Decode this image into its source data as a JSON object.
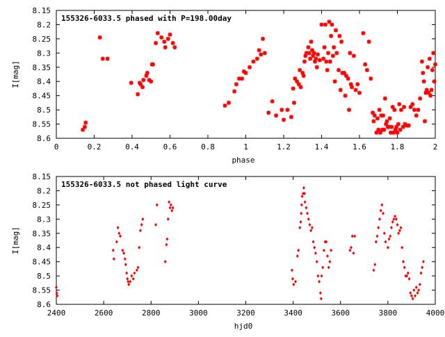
{
  "colors": {
    "points": "#ff0000",
    "axes": "#000000",
    "background": "#ffffff"
  },
  "chart_data": [
    {
      "type": "scatter",
      "title": "155326-6033.5 phased with P=198.00day",
      "xlabel": "phase",
      "ylabel": "I[mag]",
      "xlim": [
        0,
        2
      ],
      "ylim": [
        8.15,
        8.6
      ],
      "y_inverted": true,
      "marker": "star",
      "grid": false,
      "x_ticks": [
        "0",
        "0.2",
        "0.4",
        "0.6",
        "0.8",
        "1",
        "1.2",
        "1.4",
        "1.6",
        "1.8",
        "2"
      ],
      "y_ticks": [
        "8.15",
        "8.2",
        "8.25",
        "8.3",
        "8.35",
        "8.4",
        "8.45",
        "8.5",
        "8.55",
        "8.6"
      ],
      "points": [
        [
          0.14,
          8.57
        ],
        [
          0.15,
          8.56
        ],
        [
          0.155,
          8.545
        ],
        [
          0.23,
          8.245
        ],
        [
          0.245,
          8.32
        ],
        [
          0.27,
          8.32
        ],
        [
          0.395,
          8.405
        ],
        [
          0.43,
          8.445
        ],
        [
          0.44,
          8.405
        ],
        [
          0.445,
          8.41
        ],
        [
          0.455,
          8.42
        ],
        [
          0.46,
          8.395
        ],
        [
          0.475,
          8.38
        ],
        [
          0.48,
          8.37
        ],
        [
          0.49,
          8.395
        ],
        [
          0.5,
          8.4
        ],
        [
          0.505,
          8.34
        ],
        [
          0.51,
          8.34
        ],
        [
          0.525,
          8.265
        ],
        [
          0.535,
          8.23
        ],
        [
          0.555,
          8.245
        ],
        [
          0.57,
          8.26
        ],
        [
          0.575,
          8.28
        ],
        [
          0.59,
          8.25
        ],
        [
          0.6,
          8.235
        ],
        [
          0.615,
          8.265
        ],
        [
          0.625,
          8.28
        ],
        [
          0.89,
          8.485
        ],
        [
          0.91,
          8.475
        ],
        [
          0.94,
          8.435
        ],
        [
          0.95,
          8.41
        ],
        [
          0.965,
          8.39
        ],
        [
          0.98,
          8.39
        ],
        [
          0.99,
          8.365
        ],
        [
          1.0,
          8.37
        ],
        [
          1.02,
          8.35
        ],
        [
          1.04,
          8.33
        ],
        [
          1.06,
          8.32
        ],
        [
          1.07,
          8.29
        ],
        [
          1.08,
          8.305
        ],
        [
          1.09,
          8.25
        ],
        [
          1.1,
          8.3
        ],
        [
          1.12,
          8.51
        ],
        [
          1.14,
          8.47
        ],
        [
          1.16,
          8.52
        ],
        [
          1.19,
          8.5
        ],
        [
          1.2,
          8.535
        ],
        [
          1.22,
          8.5
        ],
        [
          1.24,
          8.525
        ],
        [
          1.25,
          8.425
        ],
        [
          1.255,
          8.475
        ],
        [
          1.26,
          8.39
        ],
        [
          1.27,
          8.4
        ],
        [
          1.28,
          8.41
        ],
        [
          1.285,
          8.36
        ],
        [
          1.29,
          8.42
        ],
        [
          1.3,
          8.37
        ],
        [
          1.305,
          8.38
        ],
        [
          1.31,
          8.33
        ],
        [
          1.315,
          8.31
        ],
        [
          1.32,
          8.3
        ],
        [
          1.33,
          8.28
        ],
        [
          1.335,
          8.3
        ],
        [
          1.34,
          8.32
        ],
        [
          1.345,
          8.26
        ],
        [
          1.35,
          8.29
        ],
        [
          1.355,
          8.31
        ],
        [
          1.36,
          8.3
        ],
        [
          1.365,
          8.33
        ],
        [
          1.37,
          8.32
        ],
        [
          1.375,
          8.35
        ],
        [
          1.38,
          8.305
        ],
        [
          1.39,
          8.325
        ],
        [
          1.4,
          8.2
        ],
        [
          1.41,
          8.32
        ],
        [
          1.415,
          8.28
        ],
        [
          1.42,
          8.2
        ],
        [
          1.425,
          8.33
        ],
        [
          1.43,
          8.36
        ],
        [
          1.435,
          8.3
        ],
        [
          1.44,
          8.19
        ],
        [
          1.445,
          8.33
        ],
        [
          1.45,
          8.24
        ],
        [
          1.455,
          8.2
        ],
        [
          1.46,
          8.31
        ],
        [
          1.465,
          8.28
        ],
        [
          1.47,
          8.4
        ],
        [
          1.475,
          8.22
        ],
        [
          1.48,
          8.3
        ],
        [
          1.49,
          8.36
        ],
        [
          1.495,
          8.24
        ],
        [
          1.5,
          8.43
        ],
        [
          1.505,
          8.26
        ],
        [
          1.51,
          8.37
        ],
        [
          1.52,
          8.37
        ],
        [
          1.525,
          8.45
        ],
        [
          1.53,
          8.38
        ],
        [
          1.54,
          8.39
        ],
        [
          1.545,
          8.5
        ],
        [
          1.55,
          8.3
        ],
        [
          1.555,
          8.41
        ],
        [
          1.56,
          8.42
        ],
        [
          1.57,
          8.31
        ],
        [
          1.58,
          8.43
        ],
        [
          1.59,
          8.41
        ],
        [
          1.6,
          8.44
        ],
        [
          1.62,
          8.23
        ],
        [
          1.63,
          8.34
        ],
        [
          1.64,
          8.36
        ],
        [
          1.65,
          8.26
        ],
        [
          1.66,
          8.39
        ],
        [
          1.67,
          8.51
        ],
        [
          1.675,
          8.54
        ],
        [
          1.68,
          8.52
        ],
        [
          1.69,
          8.58
        ],
        [
          1.695,
          8.53
        ],
        [
          1.7,
          8.57
        ],
        [
          1.705,
          8.5
        ],
        [
          1.71,
          8.58
        ],
        [
          1.715,
          8.52
        ],
        [
          1.72,
          8.57
        ],
        [
          1.725,
          8.52
        ],
        [
          1.73,
          8.57
        ],
        [
          1.735,
          8.46
        ],
        [
          1.74,
          8.55
        ],
        [
          1.745,
          8.54
        ],
        [
          1.75,
          8.56
        ],
        [
          1.755,
          8.56
        ],
        [
          1.76,
          8.53
        ],
        [
          1.765,
          8.58
        ],
        [
          1.77,
          8.56
        ],
        [
          1.775,
          8.49
        ],
        [
          1.78,
          8.58
        ],
        [
          1.785,
          8.5
        ],
        [
          1.79,
          8.57
        ],
        [
          1.795,
          8.56
        ],
        [
          1.8,
          8.58
        ],
        [
          1.805,
          8.55
        ],
        [
          1.81,
          8.48
        ],
        [
          1.815,
          8.57
        ],
        [
          1.82,
          8.5
        ],
        [
          1.83,
          8.56
        ],
        [
          1.835,
          8.49
        ],
        [
          1.84,
          8.55
        ],
        [
          1.85,
          8.555
        ],
        [
          1.86,
          8.555
        ],
        [
          1.87,
          8.49
        ],
        [
          1.88,
          8.48
        ],
        [
          1.89,
          8.5
        ],
        [
          1.9,
          8.52
        ],
        [
          1.91,
          8.5
        ],
        [
          1.92,
          8.46
        ],
        [
          1.93,
          8.33
        ],
        [
          1.935,
          8.37
        ],
        [
          1.94,
          8.4
        ],
        [
          1.945,
          8.54
        ],
        [
          1.95,
          8.44
        ],
        [
          1.955,
          8.43
        ],
        [
          1.96,
          8.35
        ],
        [
          1.965,
          8.44
        ],
        [
          1.97,
          8.32
        ],
        [
          1.975,
          8.45
        ],
        [
          1.98,
          8.43
        ],
        [
          1.985,
          8.36
        ],
        [
          1.99,
          8.3
        ],
        [
          1.995,
          8.4
        ],
        [
          2.0,
          8.34
        ]
      ]
    },
    {
      "type": "scatter",
      "title": "155326-6033.5 not phased light curve",
      "xlabel": "hjd0",
      "ylabel": "I[mag]",
      "xlim": [
        2400,
        4000
      ],
      "ylim": [
        8.15,
        8.6
      ],
      "y_inverted": true,
      "marker": "dot",
      "grid": false,
      "x_ticks": [
        "2400",
        "2600",
        "2800",
        "3000",
        "3200",
        "3400",
        "3600",
        "3800",
        "4000"
      ],
      "y_ticks": [
        "8.15",
        "8.2",
        "8.25",
        "8.3",
        "8.35",
        "8.4",
        "8.45",
        "8.5",
        "8.55",
        "8.6"
      ],
      "points": [
        [
          2400,
          8.54
        ],
        [
          2402,
          8.56
        ],
        [
          2404,
          8.57
        ],
        [
          2640,
          8.41
        ],
        [
          2643,
          8.44
        ],
        [
          2655,
          8.38
        ],
        [
          2660,
          8.33
        ],
        [
          2665,
          8.35
        ],
        [
          2670,
          8.36
        ],
        [
          2680,
          8.41
        ],
        [
          2685,
          8.42
        ],
        [
          2690,
          8.44
        ],
        [
          2693,
          8.46
        ],
        [
          2697,
          8.49
        ],
        [
          2700,
          8.51
        ],
        [
          2703,
          8.52
        ],
        [
          2706,
          8.53
        ],
        [
          2712,
          8.52
        ],
        [
          2718,
          8.5
        ],
        [
          2725,
          8.51
        ],
        [
          2730,
          8.49
        ],
        [
          2740,
          8.48
        ],
        [
          2745,
          8.47
        ],
        [
          2750,
          8.4
        ],
        [
          2755,
          8.34
        ],
        [
          2760,
          8.32
        ],
        [
          2765,
          8.3
        ],
        [
          2820,
          8.32
        ],
        [
          2825,
          8.25
        ],
        [
          2860,
          8.45
        ],
        [
          2865,
          8.39
        ],
        [
          2868,
          8.37
        ],
        [
          2872,
          8.3
        ],
        [
          2876,
          8.24
        ],
        [
          2880,
          8.26
        ],
        [
          2884,
          8.25
        ],
        [
          2888,
          8.27
        ],
        [
          2892,
          8.26
        ],
        [
          3395,
          8.48
        ],
        [
          3398,
          8.51
        ],
        [
          3402,
          8.53
        ],
        [
          3410,
          8.52
        ],
        [
          3418,
          8.43
        ],
        [
          3422,
          8.41
        ],
        [
          3428,
          8.33
        ],
        [
          3432,
          8.31
        ],
        [
          3434,
          8.28
        ],
        [
          3436,
          8.25
        ],
        [
          3438,
          8.22
        ],
        [
          3442,
          8.21
        ],
        [
          3445,
          8.19
        ],
        [
          3448,
          8.21
        ],
        [
          3450,
          8.24
        ],
        [
          3455,
          8.26
        ],
        [
          3460,
          8.28
        ],
        [
          3465,
          8.3
        ],
        [
          3470,
          8.32
        ],
        [
          3475,
          8.34
        ],
        [
          3480,
          8.33
        ],
        [
          3485,
          8.38
        ],
        [
          3490,
          8.4
        ],
        [
          3495,
          8.42
        ],
        [
          3500,
          8.45
        ],
        [
          3505,
          8.5
        ],
        [
          3510,
          8.52
        ],
        [
          3515,
          8.56
        ],
        [
          3518,
          8.58
        ],
        [
          3520,
          8.5
        ],
        [
          3525,
          8.47
        ],
        [
          3530,
          8.41
        ],
        [
          3535,
          8.38
        ],
        [
          3540,
          8.38
        ],
        [
          3545,
          8.43
        ],
        [
          3550,
          8.47
        ],
        [
          3555,
          8.45
        ],
        [
          3560,
          8.41
        ],
        [
          3640,
          8.41
        ],
        [
          3645,
          8.4
        ],
        [
          3650,
          8.36
        ],
        [
          3655,
          8.42
        ],
        [
          3660,
          8.36
        ],
        [
          3740,
          8.48
        ],
        [
          3745,
          8.46
        ],
        [
          3750,
          8.38
        ],
        [
          3755,
          8.36
        ],
        [
          3760,
          8.33
        ],
        [
          3765,
          8.3
        ],
        [
          3770,
          8.27
        ],
        [
          3775,
          8.25
        ],
        [
          3780,
          8.28
        ],
        [
          3785,
          8.35
        ],
        [
          3790,
          8.38
        ],
        [
          3800,
          8.4
        ],
        [
          3805,
          8.37
        ],
        [
          3810,
          8.36
        ],
        [
          3815,
          8.33
        ],
        [
          3820,
          8.31
        ],
        [
          3825,
          8.3
        ],
        [
          3830,
          8.29
        ],
        [
          3835,
          8.3
        ],
        [
          3840,
          8.32
        ],
        [
          3845,
          8.35
        ],
        [
          3850,
          8.34
        ],
        [
          3855,
          8.33
        ],
        [
          3860,
          8.4
        ],
        [
          3865,
          8.45
        ],
        [
          3870,
          8.47
        ],
        [
          3875,
          8.5
        ],
        [
          3880,
          8.5
        ],
        [
          3885,
          8.49
        ],
        [
          3890,
          8.51
        ],
        [
          3895,
          8.56
        ],
        [
          3900,
          8.57
        ],
        [
          3905,
          8.58
        ],
        [
          3910,
          8.55
        ],
        [
          3915,
          8.57
        ],
        [
          3920,
          8.54
        ],
        [
          3925,
          8.56
        ],
        [
          3930,
          8.55
        ],
        [
          3935,
          8.53
        ],
        [
          3940,
          8.49
        ],
        [
          3945,
          8.47
        ],
        [
          3950,
          8.45
        ]
      ]
    }
  ]
}
